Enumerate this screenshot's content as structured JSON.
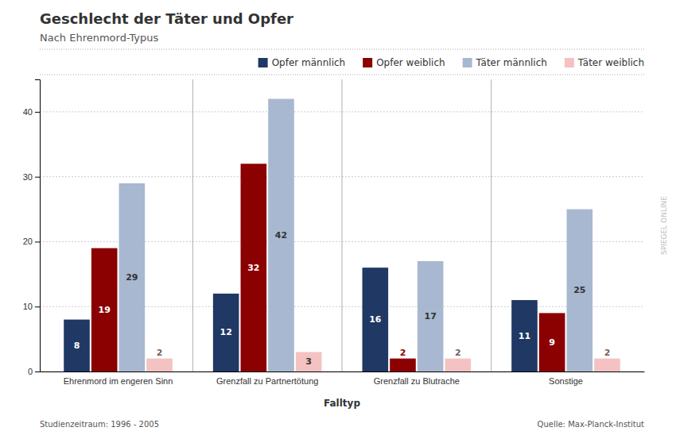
{
  "chart_data": {
    "type": "bar",
    "title": "Geschlecht der Täter und Opfer",
    "subtitle": "Nach Ehrenmord-Typus",
    "x_label": "Falltyp",
    "annotations": [
      "Studienzeitraum: 1996 - 2005",
      "Quelle: Max-Planck-Institut",
      "SPIEGEL ONLINE"
    ],
    "categories": [
      "Ehrenmord im engeren Sinn",
      "Grenzfall zu Partnertötung",
      "Grenzfall zu Blutrache",
      "Sonstige"
    ],
    "series": [
      {
        "name": "Opfer männlich",
        "color": "#1f3864",
        "values": [
          8,
          12,
          16,
          11
        ]
      },
      {
        "name": "Opfer weiblich",
        "color": "#8b0000",
        "values": [
          19,
          32,
          2,
          9
        ]
      },
      {
        "name": "Täter männlich",
        "color": "#a8b8d0",
        "values": [
          29,
          42,
          17,
          25
        ]
      },
      {
        "name": "Täter weiblich",
        "color": "#f4c2c2",
        "values": [
          2,
          3,
          2,
          2
        ]
      }
    ],
    "ylim": [
      0,
      45
    ],
    "yticks": [
      0,
      10,
      20,
      30,
      40
    ],
    "grid": true,
    "legend": "upper right",
    "data_labels": true
  }
}
